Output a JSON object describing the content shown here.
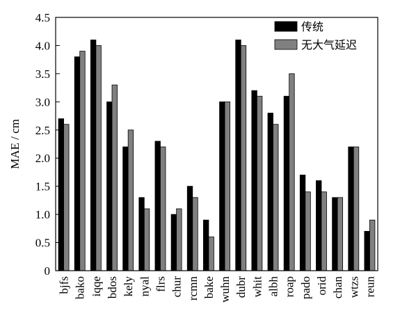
{
  "chart_data": {
    "type": "bar",
    "title": "",
    "xlabel": "",
    "ylabel": "MAE / cm",
    "ylim": [
      0,
      4.5
    ],
    "yticks": [
      "0",
      "0.5",
      "1.0",
      "1.5",
      "2.0",
      "2.5",
      "3.0",
      "3.5",
      "4.0",
      "4.5"
    ],
    "grid": false,
    "legend_position": "top-right",
    "categories": [
      "bjfs",
      "bako",
      "iqqe",
      "bdos",
      "kely",
      "nyal",
      "flrs",
      "chur",
      "rcmn",
      "bake",
      "wuhn",
      "dubr",
      "whit",
      "albh",
      "roap",
      "pado",
      "orid",
      "chan",
      "wtzs",
      "reun"
    ],
    "series": [
      {
        "name": "传统",
        "color": "#000000",
        "values": [
          2.7,
          3.8,
          4.1,
          3.0,
          2.2,
          1.3,
          2.3,
          1.0,
          1.5,
          0.9,
          3.0,
          4.1,
          3.2,
          2.8,
          3.1,
          1.7,
          1.6,
          1.3,
          2.2,
          0.7
        ]
      },
      {
        "name": "无大气延迟",
        "color": "#808080",
        "values": [
          2.6,
          3.9,
          4.0,
          3.3,
          2.5,
          1.1,
          2.2,
          1.1,
          1.3,
          0.6,
          3.0,
          4.0,
          3.1,
          2.6,
          3.5,
          1.4,
          1.4,
          1.3,
          2.2,
          0.9
        ]
      }
    ]
  }
}
